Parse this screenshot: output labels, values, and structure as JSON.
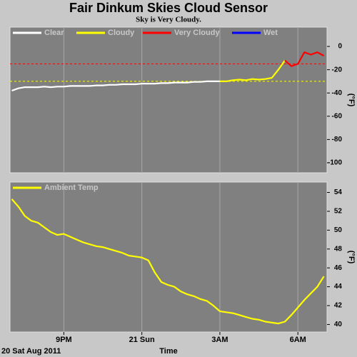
{
  "chart_data": [
    {
      "type": "line",
      "title": "Fair Dinkum Skies Cloud Sensor",
      "subtitle": "Sky is Very Cloudy.",
      "ylabel": "(°F)",
      "x": [
        19,
        19.25,
        19.5,
        19.75,
        20,
        20.25,
        20.5,
        20.75,
        21,
        21.25,
        21.5,
        21.75,
        22,
        22.25,
        22.5,
        22.75,
        23,
        23.25,
        23.5,
        23.75,
        24,
        24.25,
        24.5,
        24.75,
        25,
        25.25,
        25.5,
        25.75,
        26,
        26.25,
        26.5,
        26.75,
        27,
        27.25,
        27.5,
        27.75,
        28,
        28.25,
        28.5,
        28.75,
        29,
        29.25,
        29.5,
        29.75,
        30,
        30.25,
        30.5,
        30.75,
        31
      ],
      "series": [
        {
          "name": "Clear",
          "color": "#ffffff",
          "values": [
            -38,
            -36,
            -35,
            -35,
            -35,
            -34.5,
            -35,
            -34.5,
            -34.5,
            -34,
            -34,
            -34,
            -34,
            -33.5,
            -33.5,
            -33,
            -33,
            -32.5,
            -32.5,
            -32.5,
            -32,
            -32,
            -32,
            -31.5,
            -31.5,
            -31,
            -31,
            -31,
            -30.5,
            -30.5,
            -30,
            -30,
            -30,
            null,
            null,
            null,
            null,
            null,
            null,
            null,
            null,
            null,
            null,
            null,
            null,
            null,
            null,
            null,
            null
          ]
        },
        {
          "name": "Cloudy",
          "color": "#ffff00",
          "values": [
            null,
            null,
            null,
            null,
            null,
            null,
            null,
            null,
            null,
            null,
            null,
            null,
            null,
            null,
            null,
            null,
            null,
            null,
            null,
            null,
            null,
            null,
            null,
            null,
            null,
            null,
            null,
            null,
            null,
            null,
            null,
            null,
            -30,
            -30,
            -29,
            -28.5,
            -29,
            -28,
            -28.5,
            -28,
            -27,
            -20,
            -12,
            null,
            null,
            null,
            null,
            null,
            null
          ]
        },
        {
          "name": "Very Cloudy",
          "color": "#ff0000",
          "values": [
            null,
            null,
            null,
            null,
            null,
            null,
            null,
            null,
            null,
            null,
            null,
            null,
            null,
            null,
            null,
            null,
            null,
            null,
            null,
            null,
            null,
            null,
            null,
            null,
            null,
            null,
            null,
            null,
            null,
            null,
            null,
            null,
            null,
            null,
            null,
            null,
            null,
            null,
            null,
            null,
            null,
            null,
            -12,
            -17,
            -15,
            -5,
            -7,
            -5,
            -8
          ]
        },
        {
          "name": "Wet",
          "color": "#0000ff",
          "values": [
            null,
            null,
            null,
            null,
            null,
            null,
            null,
            null,
            null,
            null,
            null,
            null,
            null,
            null,
            null,
            null,
            null,
            null,
            null,
            null,
            null,
            null,
            null,
            null,
            null,
            null,
            null,
            null,
            null,
            null,
            null,
            null,
            null,
            null,
            null,
            null,
            null,
            null,
            null,
            null,
            null,
            null,
            null,
            null,
            null,
            null,
            null,
            null,
            null
          ]
        }
      ],
      "thresholds": [
        {
          "value": -15,
          "color": "#ff0000"
        },
        {
          "value": -30,
          "color": "#ffff00"
        }
      ],
      "xlim": [
        18.93,
        31.12
      ],
      "xticks": [
        21,
        24,
        27,
        30
      ],
      "ylim": [
        -108.6,
        16.6
      ],
      "yticks": [
        0,
        -20,
        -40,
        -60,
        -80,
        -100
      ],
      "grid": true
    },
    {
      "type": "line",
      "ylabel": "(°F)",
      "xlabel": "Time",
      "date_label": "20 Sat Aug 2011",
      "x": [
        19,
        19.25,
        19.5,
        19.75,
        20,
        20.25,
        20.5,
        20.75,
        21,
        21.25,
        21.5,
        21.75,
        22,
        22.25,
        22.5,
        22.75,
        23,
        23.25,
        23.5,
        23.75,
        24,
        24.25,
        24.5,
        24.75,
        25,
        25.25,
        25.5,
        25.75,
        26,
        26.25,
        26.5,
        26.75,
        27,
        27.25,
        27.5,
        27.75,
        28,
        28.25,
        28.5,
        28.75,
        29,
        29.25,
        29.5,
        29.75,
        30,
        30.25,
        30.5,
        30.75,
        31
      ],
      "series": [
        {
          "name": "Ambient Temp",
          "color": "#ffff00",
          "values": [
            53.3,
            52.5,
            51.5,
            51,
            50.8,
            50.3,
            49.8,
            49.5,
            49.6,
            49.3,
            49,
            48.7,
            48.5,
            48.3,
            48.2,
            48,
            47.8,
            47.6,
            47.3,
            47.2,
            47.1,
            46.8,
            45.5,
            44.5,
            44.2,
            44,
            43.5,
            43.2,
            43,
            42.7,
            42.5,
            42,
            41.4,
            41.3,
            41.2,
            41,
            40.8,
            40.6,
            40.5,
            40.3,
            40.2,
            40.1,
            40.3,
            41,
            41.8,
            42.6,
            43.3,
            44,
            45.1
          ]
        }
      ],
      "xlim": [
        18.93,
        31.12
      ],
      "xticks": [
        {
          "value": 21,
          "label": "9PM"
        },
        {
          "value": 24,
          "label": "21 Sun"
        },
        {
          "value": 27,
          "label": "3AM"
        },
        {
          "value": 30,
          "label": "6AM"
        }
      ],
      "ylim": [
        39.2,
        55.1
      ],
      "yticks": [
        40,
        42,
        44,
        46,
        48,
        50,
        52,
        54
      ],
      "grid": true
    }
  ]
}
